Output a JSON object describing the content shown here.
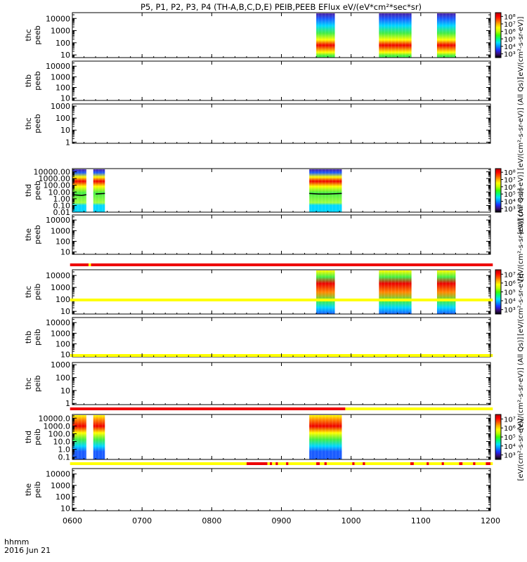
{
  "chart_data": {
    "type": "heatmap",
    "title": "P5, P1, P2, P3, P4 (TH-A,B,C,D,E) PEIB,PEEB EFlux eV/(eV*cm²*sec*sr)",
    "x_axis": {
      "range_minutes": [
        0,
        360
      ],
      "ticks": [
        {
          "label": "0600",
          "value": 0
        },
        {
          "label": "0700",
          "value": 60
        },
        {
          "label": "0800",
          "value": 120
        },
        {
          "label": "0900",
          "value": 180
        },
        {
          "label": "1000",
          "value": 240
        },
        {
          "label": "1100",
          "value": 300
        },
        {
          "label": "1200",
          "value": 360
        }
      ],
      "label_line1": "hhmm",
      "label_line2": "2016 Jun 21"
    },
    "panels": [
      {
        "ylabel1": "thc",
        "ylabel2": "peeb",
        "yrange": [
          6,
          30000
        ],
        "yticks": [
          {
            "label": "10",
            "value": 10
          },
          {
            "label": "100",
            "value": 100
          },
          {
            "label": "1000",
            "value": 1000
          },
          {
            "label": "10000",
            "value": 10000
          }
        ],
        "blocks": [
          [
            210,
            226
          ],
          [
            264,
            292
          ],
          [
            314,
            330
          ]
        ],
        "spectrum": "electron",
        "line_segments": [],
        "colorbar": {
          "ticks": [
            "10³",
            "10⁴",
            "10⁵",
            "10⁶",
            "10⁷",
            "10⁸"
          ],
          "label": "[eV/(cm²-s-sr-eV)]"
        }
      },
      {
        "ylabel1": "thb",
        "ylabel2": "peeb",
        "yrange": [
          6,
          30000
        ],
        "yticks": [
          {
            "label": "10",
            "value": 10
          },
          {
            "label": "100",
            "value": 100
          },
          {
            "label": "1000",
            "value": 1000
          },
          {
            "label": "10000",
            "value": 10000
          }
        ],
        "blocks": [],
        "spectrum": "electron",
        "line_segments": []
      },
      {
        "ylabel1": "thc",
        "ylabel2": "peeb",
        "yrange": [
          0.8,
          1500
        ],
        "yticks": [
          {
            "label": "1",
            "value": 1
          },
          {
            "label": "10",
            "value": 10
          },
          {
            "label": "100",
            "value": 100
          },
          {
            "label": "1000",
            "value": 1000
          }
        ],
        "blocks": [],
        "spectrum": "electron",
        "line_segments": [],
        "side_label": "[eV/(cm²-s-sr-eV)] (All Qs)]"
      },
      {
        "ylabel1": "thd",
        "ylabel2": "peeb",
        "yrange": [
          0.01,
          30000
        ],
        "yticks": [
          {
            "label": "0.01",
            "value": 0.01
          },
          {
            "label": "0.10",
            "value": 0.1
          },
          {
            "label": "1.00",
            "value": 1
          },
          {
            "label": "10.00",
            "value": 10
          },
          {
            "label": "100.00",
            "value": 100
          },
          {
            "label": "1000.00",
            "value": 1000
          },
          {
            "label": "10000.00",
            "value": 10000
          }
        ],
        "blocks": [
          [
            0,
            12
          ],
          [
            18,
            28
          ],
          [
            204,
            232
          ]
        ],
        "spectrum": "electron_wide",
        "line_segments": [
          {
            "points": [
              [
                0,
                4
              ],
              [
                8,
                3
              ],
              [
                12,
                4
              ]
            ]
          },
          {
            "points": [
              [
                20,
                5
              ],
              [
                28,
                6
              ]
            ]
          },
          {
            "points": [
              [
                204,
                6
              ],
              [
                212,
                5
              ],
              [
                220,
                5
              ],
              [
                232,
                6
              ]
            ]
          }
        ],
        "colorbar": {
          "ticks": [
            "10³",
            "10⁴",
            "10⁵",
            "10⁶",
            "10⁷",
            "10⁸"
          ],
          "label": "[eV/(cm²-s-sr-eV)]"
        }
      },
      {
        "ylabel1": "the",
        "ylabel2": "peeb",
        "yrange": [
          6,
          30000
        ],
        "yticks": [
          {
            "label": "10",
            "value": 10
          },
          {
            "label": "100",
            "value": 100
          },
          {
            "label": "1000",
            "value": 1000
          },
          {
            "label": "10000",
            "value": 10000
          }
        ],
        "blocks": [],
        "spectrum": "electron",
        "line_segments": [],
        "side_label": "[eV/(cm²-s-sr-eV)] (All Qs)]"
      },
      {
        "ylabel1": "thc",
        "ylabel2": "peib",
        "yrange": [
          6,
          30000
        ],
        "yticks": [
          {
            "label": "10",
            "value": 10
          },
          {
            "label": "100",
            "value": 100
          },
          {
            "label": "1000",
            "value": 1000
          },
          {
            "label": "10000",
            "value": 10000
          }
        ],
        "blocks": [
          [
            210,
            226
          ],
          [
            264,
            292
          ],
          [
            314,
            330
          ]
        ],
        "spectrum": "ion",
        "line_segments": [],
        "colorbar": {
          "ticks": [
            "10³",
            "10⁴",
            "10⁵",
            "10⁶",
            "10⁷"
          ],
          "label": "[eV/(cm²-s-sr-eV)]"
        }
      },
      {
        "ylabel1": "thb",
        "ylabel2": "peib",
        "yrange": [
          6,
          30000
        ],
        "yticks": [
          {
            "label": "10",
            "value": 10
          },
          {
            "label": "100",
            "value": 100
          },
          {
            "label": "1000",
            "value": 1000
          },
          {
            "label": "10000",
            "value": 10000
          }
        ],
        "blocks": [],
        "spectrum": "ion",
        "line_segments": []
      },
      {
        "ylabel1": "thc",
        "ylabel2": "peib",
        "yrange": [
          0.8,
          1500
        ],
        "yticks": [
          {
            "label": "1",
            "value": 1
          },
          {
            "label": "10",
            "value": 10
          },
          {
            "label": "100",
            "value": 100
          },
          {
            "label": "1000",
            "value": 1000
          }
        ],
        "blocks": [],
        "spectrum": "ion",
        "line_segments": [],
        "side_label": "[eV/(cm²-s-sr-eV)] (All Qs)]"
      },
      {
        "ylabel1": "thd",
        "ylabel2": "peib",
        "yrange": [
          0.05,
          30000
        ],
        "yticks": [
          {
            "label": "0.1",
            "value": 0.1
          },
          {
            "label": "1.0",
            "value": 1
          },
          {
            "label": "10.0",
            "value": 10
          },
          {
            "label": "100.0",
            "value": 100
          },
          {
            "label": "1000.0",
            "value": 1000
          },
          {
            "label": "10000.0",
            "value": 10000
          }
        ],
        "blocks": [
          [
            0,
            12
          ],
          [
            18,
            28
          ],
          [
            204,
            232
          ]
        ],
        "spectrum": "ion_wide",
        "line_segments": [],
        "colorbar": {
          "ticks": [
            "10³",
            "10⁴",
            "10⁵",
            "10⁶",
            "10⁷"
          ],
          "label": "[eV/(cm²-s-sr-eV)]"
        }
      },
      {
        "ylabel1": "the",
        "ylabel2": "peib",
        "yrange": [
          6,
          30000
        ],
        "yticks": [
          {
            "label": "10",
            "value": 10
          },
          {
            "label": "100",
            "value": 100
          },
          {
            "label": "1000",
            "value": 1000
          },
          {
            "label": "10000",
            "value": 10000
          }
        ],
        "blocks": [],
        "spectrum": "ion",
        "line_segments": []
      }
    ],
    "flag_bars": [
      {
        "segments": [
          [
            -2,
            14,
            "red"
          ],
          [
            14,
            16,
            "yellow"
          ],
          [
            16,
            362,
            "red"
          ]
        ]
      },
      {
        "segments": [
          [
            -2,
            362,
            "yellow"
          ]
        ]
      },
      {
        "segments": [
          [
            -2,
            362,
            "yellow"
          ]
        ]
      },
      {
        "segments": [
          [
            -2,
            235,
            "red"
          ],
          [
            235,
            362,
            "yellow"
          ]
        ]
      },
      {
        "segments": [
          [
            -2,
            150,
            "yellow"
          ],
          [
            150,
            168,
            "red"
          ],
          [
            168,
            170,
            "yellow"
          ],
          [
            170,
            172,
            "red"
          ],
          [
            172,
            175,
            "yellow"
          ],
          [
            175,
            177,
            "red"
          ],
          [
            177,
            184,
            "yellow"
          ],
          [
            184,
            186,
            "red"
          ],
          [
            186,
            210,
            "yellow"
          ],
          [
            210,
            213,
            "red"
          ],
          [
            213,
            217,
            "yellow"
          ],
          [
            217,
            219,
            "red"
          ],
          [
            219,
            241,
            "yellow"
          ],
          [
            241,
            243,
            "red"
          ],
          [
            243,
            250,
            "yellow"
          ],
          [
            250,
            252,
            "red"
          ],
          [
            252,
            291,
            "yellow"
          ],
          [
            291,
            294,
            "red"
          ],
          [
            294,
            305,
            "yellow"
          ],
          [
            305,
            307,
            "red"
          ],
          [
            307,
            318,
            "yellow"
          ],
          [
            318,
            320,
            "red"
          ],
          [
            320,
            333,
            "yellow"
          ],
          [
            333,
            336,
            "red"
          ],
          [
            336,
            345,
            "yellow"
          ],
          [
            345,
            347,
            "red"
          ],
          [
            347,
            356,
            "yellow"
          ],
          [
            356,
            360,
            "red"
          ],
          [
            360,
            362,
            "yellow"
          ]
        ]
      }
    ]
  }
}
